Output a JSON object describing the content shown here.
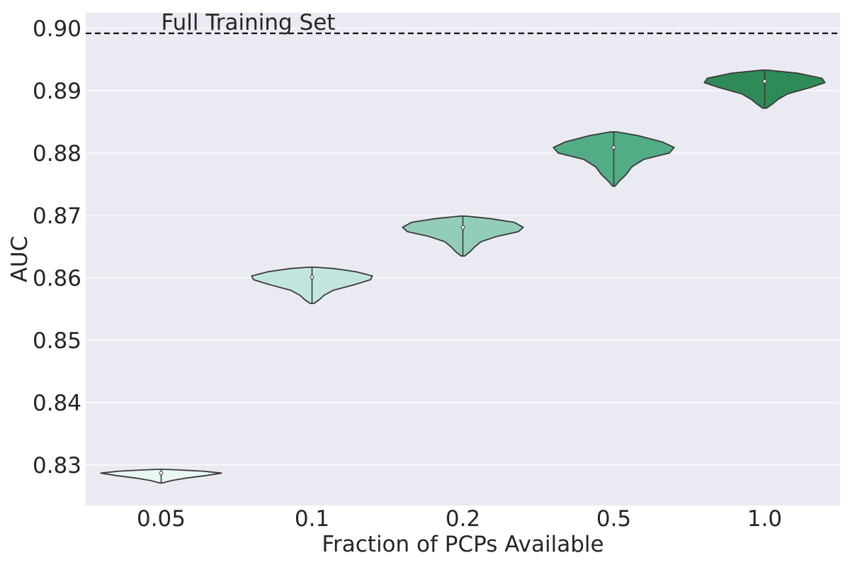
{
  "chart_data": {
    "type": "violin",
    "xlabel": "Fraction of PCPs Available",
    "ylabel": "AUC",
    "categories": [
      "0.05",
      "0.1",
      "0.2",
      "0.5",
      "1.0"
    ],
    "ylim": [
      0.8235,
      0.9025
    ],
    "yticks": [
      0.83,
      0.84,
      0.85,
      0.86,
      0.87,
      0.88,
      0.89,
      0.9
    ],
    "ytick_labels": [
      "0.83",
      "0.84",
      "0.85",
      "0.86",
      "0.87",
      "0.88",
      "0.89",
      "0.90"
    ],
    "grid": true,
    "reference_line": {
      "label": "Full Training Set",
      "value": 0.8992,
      "style": "dashed"
    },
    "violins": [
      {
        "category": "0.05",
        "median": 0.8287,
        "min": 0.8271,
        "max": 0.8293,
        "color": "#e8f6f3",
        "profile": [
          [
            0.8271,
            0.02
          ],
          [
            0.8275,
            0.18
          ],
          [
            0.8279,
            0.42
          ],
          [
            0.8283,
            0.74
          ],
          [
            0.8287,
            1.0
          ],
          [
            0.829,
            0.7
          ],
          [
            0.8292,
            0.3
          ],
          [
            0.8293,
            0.05
          ]
        ]
      },
      {
        "category": "0.1",
        "median": 0.8601,
        "min": 0.8559,
        "max": 0.8617,
        "color": "#c2e6dd",
        "profile": [
          [
            0.8559,
            0.03
          ],
          [
            0.8565,
            0.12
          ],
          [
            0.8572,
            0.2
          ],
          [
            0.858,
            0.35
          ],
          [
            0.8589,
            0.7
          ],
          [
            0.8597,
            0.97
          ],
          [
            0.8603,
            1.0
          ],
          [
            0.861,
            0.72
          ],
          [
            0.8615,
            0.35
          ],
          [
            0.8617,
            0.05
          ]
        ]
      },
      {
        "category": "0.2",
        "median": 0.8681,
        "min": 0.8635,
        "max": 0.8699,
        "color": "#92cdb8",
        "profile": [
          [
            0.8635,
            0.03
          ],
          [
            0.8642,
            0.12
          ],
          [
            0.865,
            0.2
          ],
          [
            0.8658,
            0.3
          ],
          [
            0.8666,
            0.55
          ],
          [
            0.8674,
            0.92
          ],
          [
            0.8681,
            1.0
          ],
          [
            0.8689,
            0.85
          ],
          [
            0.8695,
            0.45
          ],
          [
            0.8699,
            0.05
          ]
        ]
      },
      {
        "category": "0.5",
        "median": 0.8809,
        "min": 0.8747,
        "max": 0.8834,
        "color": "#52ad87",
        "profile": [
          [
            0.8747,
            0.02
          ],
          [
            0.8756,
            0.1
          ],
          [
            0.8765,
            0.2
          ],
          [
            0.8778,
            0.3
          ],
          [
            0.879,
            0.5
          ],
          [
            0.88,
            0.92
          ],
          [
            0.8809,
            1.0
          ],
          [
            0.8818,
            0.8
          ],
          [
            0.8828,
            0.4
          ],
          [
            0.8834,
            0.05
          ]
        ]
      },
      {
        "category": "1.0",
        "median": 0.8915,
        "min": 0.8872,
        "max": 0.8933,
        "color": "#2e8b57",
        "profile": [
          [
            0.8872,
            0.03
          ],
          [
            0.8878,
            0.12
          ],
          [
            0.8886,
            0.22
          ],
          [
            0.8895,
            0.38
          ],
          [
            0.8905,
            0.75
          ],
          [
            0.8913,
            1.0
          ],
          [
            0.892,
            0.95
          ],
          [
            0.8928,
            0.55
          ],
          [
            0.8933,
            0.05
          ]
        ]
      }
    ]
  }
}
